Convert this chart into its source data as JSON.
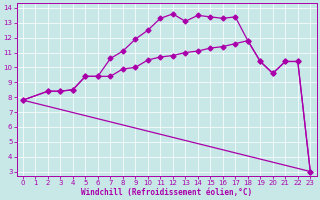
{
  "bg_color": "#c8e8e8",
  "line_color": "#aa00aa",
  "marker": "D",
  "xlabel": "Windchill (Refroidissement éolien,°C)",
  "xlim_min": -0.5,
  "xlim_max": 23.5,
  "ylim_min": 2.7,
  "ylim_max": 14.3,
  "xticks": [
    0,
    1,
    2,
    3,
    4,
    5,
    6,
    7,
    8,
    9,
    10,
    11,
    12,
    13,
    14,
    15,
    16,
    17,
    18,
    19,
    20,
    21,
    22,
    23
  ],
  "yticks": [
    3,
    4,
    5,
    6,
    7,
    8,
    9,
    10,
    11,
    12,
    13,
    14
  ],
  "series": [
    {
      "x": [
        0,
        23
      ],
      "y": [
        7.8,
        3.0
      ],
      "has_markers": false
    },
    {
      "x": [
        0,
        2,
        3,
        4,
        5,
        6,
        7,
        8,
        9,
        10,
        11,
        12,
        13,
        14,
        15,
        16,
        17,
        18,
        19,
        20,
        21,
        22,
        23
      ],
      "y": [
        7.8,
        8.4,
        8.4,
        8.5,
        9.4,
        9.4,
        9.4,
        9.9,
        10.0,
        10.5,
        10.7,
        10.8,
        11.0,
        11.1,
        11.3,
        11.4,
        11.6,
        11.8,
        10.4,
        9.6,
        10.4,
        10.4,
        3.0
      ],
      "has_markers": true
    },
    {
      "x": [
        0,
        2,
        3,
        4,
        5,
        6,
        7,
        8,
        9,
        10,
        11,
        12,
        13,
        14,
        15,
        16,
        17,
        18,
        19,
        20,
        21,
        22,
        23
      ],
      "y": [
        7.8,
        8.4,
        8.4,
        8.5,
        9.4,
        9.4,
        10.6,
        11.1,
        11.9,
        12.5,
        13.3,
        13.6,
        13.1,
        13.5,
        13.4,
        13.3,
        13.4,
        11.8,
        10.4,
        9.6,
        10.4,
        10.4,
        3.0
      ],
      "has_markers": true
    }
  ]
}
